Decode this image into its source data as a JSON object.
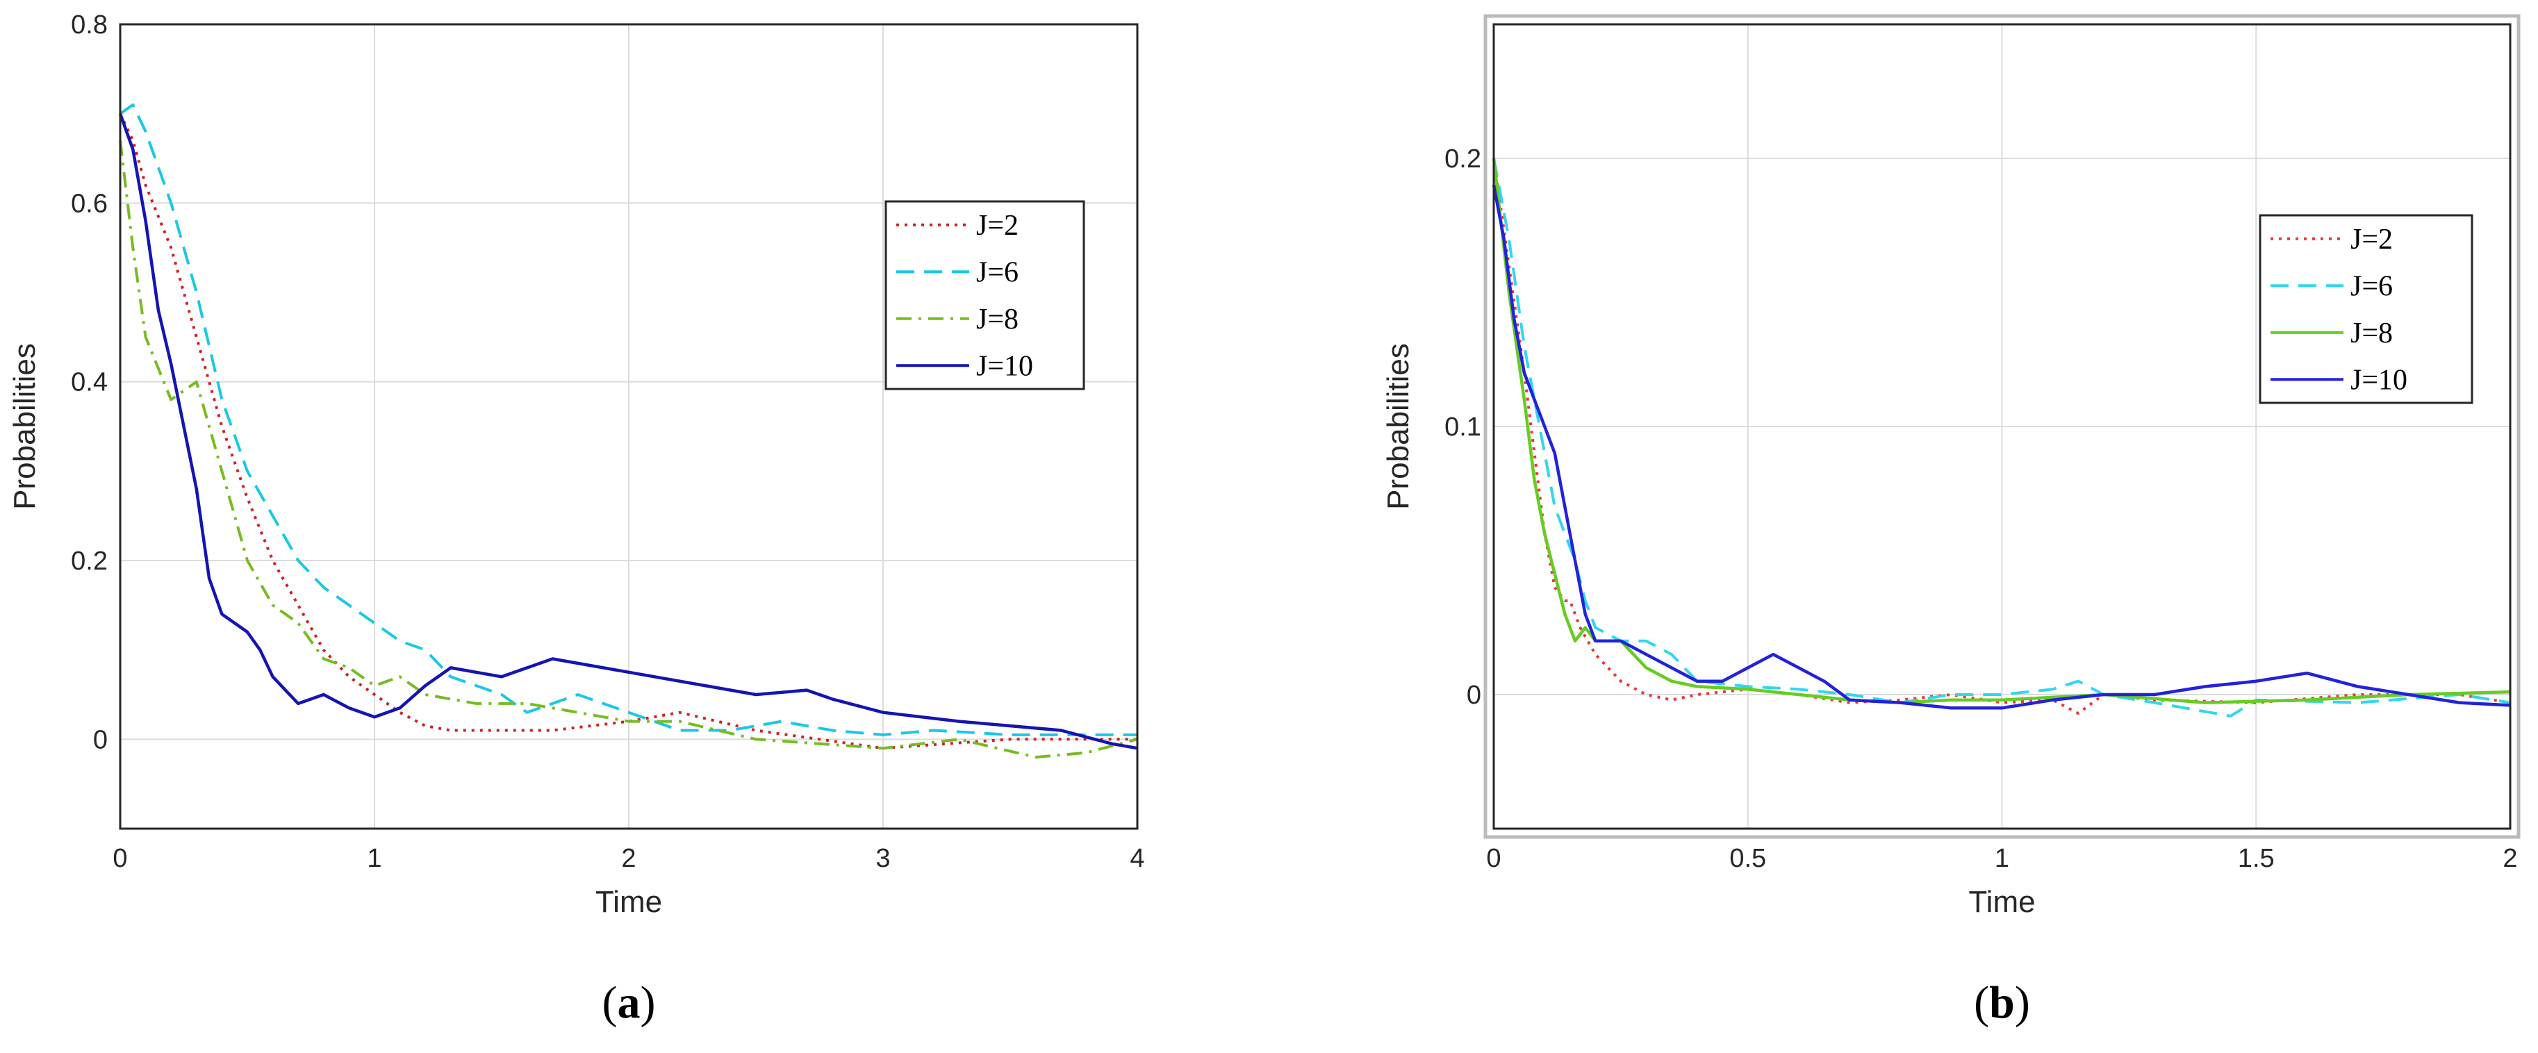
{
  "chart_data": [
    {
      "type": "line",
      "panel": "a",
      "caption_open": "(",
      "caption_letter": "a",
      "caption_close": ")",
      "xlabel": "Time",
      "ylabel": "Probabilities",
      "xlim": [
        0,
        4
      ],
      "ylim": [
        -0.1,
        0.8
      ],
      "xticks": [
        0,
        1,
        2,
        3,
        4
      ],
      "xtick_labels": [
        "0",
        "1",
        "2",
        "3",
        "4"
      ],
      "yticks": [
        0,
        0.2,
        0.4,
        0.6,
        0.8
      ],
      "ytick_labels": [
        "0",
        "0.2",
        "0.4",
        "0.6",
        "0.8"
      ],
      "grid": true,
      "legend_position": "upper-right",
      "series": [
        {
          "name": "J=2",
          "color": "#cc2222",
          "dash": "dotted",
          "x": [
            0,
            0.05,
            0.1,
            0.2,
            0.3,
            0.4,
            0.5,
            0.6,
            0.7,
            0.8,
            0.9,
            1.0,
            1.1,
            1.2,
            1.3,
            1.5,
            1.7,
            2.0,
            2.2,
            2.5,
            3.0,
            3.5,
            4.0
          ],
          "y": [
            0.7,
            0.67,
            0.62,
            0.55,
            0.45,
            0.35,
            0.27,
            0.2,
            0.15,
            0.1,
            0.07,
            0.05,
            0.03,
            0.015,
            0.01,
            0.01,
            0.01,
            0.02,
            0.03,
            0.01,
            -0.01,
            0.0,
            0.0
          ]
        },
        {
          "name": "J=6",
          "color": "#19c8e6",
          "dash": "dashed",
          "x": [
            0,
            0.05,
            0.1,
            0.2,
            0.3,
            0.4,
            0.5,
            0.6,
            0.7,
            0.8,
            0.9,
            1.0,
            1.1,
            1.2,
            1.3,
            1.4,
            1.5,
            1.6,
            1.7,
            1.8,
            2.0,
            2.2,
            2.4,
            2.6,
            2.8,
            3.0,
            3.2,
            3.5,
            4.0
          ],
          "y": [
            0.7,
            0.71,
            0.68,
            0.6,
            0.5,
            0.38,
            0.3,
            0.25,
            0.2,
            0.17,
            0.15,
            0.13,
            0.11,
            0.1,
            0.07,
            0.06,
            0.05,
            0.03,
            0.04,
            0.05,
            0.03,
            0.01,
            0.01,
            0.02,
            0.01,
            0.005,
            0.01,
            0.005,
            0.005
          ]
        },
        {
          "name": "J=8",
          "color": "#77bb22",
          "dash": "dashdot",
          "x": [
            0,
            0.05,
            0.1,
            0.2,
            0.3,
            0.4,
            0.5,
            0.6,
            0.7,
            0.8,
            0.9,
            1.0,
            1.1,
            1.2,
            1.4,
            1.6,
            1.8,
            2.0,
            2.2,
            2.5,
            3.0,
            3.3,
            3.6,
            3.8,
            4.0
          ],
          "y": [
            0.67,
            0.55,
            0.45,
            0.38,
            0.4,
            0.3,
            0.2,
            0.15,
            0.13,
            0.09,
            0.08,
            0.06,
            0.07,
            0.05,
            0.04,
            0.04,
            0.03,
            0.02,
            0.02,
            0.0,
            -0.01,
            0.0,
            -0.02,
            -0.015,
            0.0
          ]
        },
        {
          "name": "J=10",
          "color": "#1414b4",
          "dash": "solid",
          "x": [
            0,
            0.05,
            0.1,
            0.15,
            0.2,
            0.3,
            0.35,
            0.4,
            0.5,
            0.55,
            0.6,
            0.7,
            0.8,
            0.9,
            1.0,
            1.1,
            1.2,
            1.3,
            1.5,
            1.6,
            1.7,
            2.0,
            2.3,
            2.5,
            2.7,
            2.8,
            3.0,
            3.3,
            3.7,
            3.9,
            4.0
          ],
          "y": [
            0.7,
            0.66,
            0.58,
            0.48,
            0.42,
            0.28,
            0.18,
            0.14,
            0.12,
            0.1,
            0.07,
            0.04,
            0.05,
            0.035,
            0.025,
            0.035,
            0.06,
            0.08,
            0.07,
            0.08,
            0.09,
            0.075,
            0.06,
            0.05,
            0.055,
            0.045,
            0.03,
            0.02,
            0.01,
            -0.005,
            -0.01
          ]
        }
      ]
    },
    {
      "type": "line",
      "panel": "b",
      "caption_open": "(",
      "caption_letter": "b",
      "caption_close": ")",
      "xlabel": "Time",
      "ylabel": "Probabilities",
      "xlim": [
        0,
        2
      ],
      "ylim": [
        -0.05,
        0.25
      ],
      "xticks": [
        0,
        0.5,
        1,
        1.5,
        2
      ],
      "xtick_labels": [
        "0",
        "0.5",
        "1",
        "1.5",
        "2"
      ],
      "yticks": [
        0,
        0.1,
        0.2
      ],
      "ytick_labels": [
        "0",
        "0.1",
        "0.2"
      ],
      "grid": true,
      "legend_position": "upper-right",
      "series": [
        {
          "name": "J=2",
          "color": "#ee3333",
          "dash": "dotted",
          "x": [
            0,
            0.03,
            0.06,
            0.08,
            0.1,
            0.12,
            0.14,
            0.15,
            0.17,
            0.2,
            0.25,
            0.3,
            0.35,
            0.4,
            0.5,
            0.6,
            0.7,
            0.8,
            0.9,
            1.0,
            1.1,
            1.15,
            1.2,
            1.3,
            1.5,
            1.7,
            1.9,
            2.0
          ],
          "y": [
            0.2,
            0.16,
            0.12,
            0.09,
            0.06,
            0.04,
            0.035,
            0.035,
            0.025,
            0.015,
            0.005,
            0.0,
            -0.002,
            0.0,
            0.002,
            0.0,
            -0.003,
            -0.002,
            0.0,
            -0.003,
            -0.002,
            -0.007,
            0.0,
            -0.002,
            -0.003,
            0.0,
            0.0,
            -0.003
          ]
        },
        {
          "name": "J=6",
          "color": "#33d6ee",
          "dash": "dashed",
          "x": [
            0,
            0.03,
            0.06,
            0.08,
            0.1,
            0.12,
            0.14,
            0.16,
            0.18,
            0.2,
            0.25,
            0.3,
            0.35,
            0.4,
            0.5,
            0.6,
            0.7,
            0.8,
            0.9,
            1.0,
            1.1,
            1.15,
            1.2,
            1.3,
            1.45,
            1.5,
            1.7,
            1.9,
            2.0
          ],
          "y": [
            0.2,
            0.17,
            0.13,
            0.11,
            0.09,
            0.07,
            0.06,
            0.05,
            0.035,
            0.025,
            0.02,
            0.02,
            0.015,
            0.005,
            0.003,
            0.002,
            0.0,
            -0.003,
            0.0,
            0.0,
            0.002,
            0.005,
            0.0,
            -0.003,
            -0.008,
            -0.002,
            -0.003,
            0.0,
            -0.003
          ]
        },
        {
          "name": "J=8",
          "color": "#66cc22",
          "dash": "solid",
          "x": [
            0,
            0.03,
            0.06,
            0.08,
            0.1,
            0.12,
            0.14,
            0.16,
            0.18,
            0.2,
            0.25,
            0.3,
            0.35,
            0.4,
            0.5,
            0.6,
            0.7,
            0.8,
            0.9,
            1.0,
            1.2,
            1.4,
            1.6,
            1.8,
            2.0
          ],
          "y": [
            0.2,
            0.15,
            0.11,
            0.08,
            0.06,
            0.045,
            0.03,
            0.02,
            0.025,
            0.02,
            0.02,
            0.01,
            0.005,
            0.003,
            0.002,
            0.0,
            -0.002,
            -0.003,
            -0.002,
            -0.002,
            0.0,
            -0.003,
            -0.002,
            0.0,
            0.001
          ]
        },
        {
          "name": "J=10",
          "color": "#2222dd",
          "dash": "solid",
          "x": [
            0,
            0.02,
            0.04,
            0.06,
            0.08,
            0.1,
            0.12,
            0.14,
            0.16,
            0.18,
            0.2,
            0.25,
            0.3,
            0.35,
            0.4,
            0.45,
            0.5,
            0.55,
            0.6,
            0.65,
            0.7,
            0.8,
            0.9,
            1.0,
            1.1,
            1.2,
            1.3,
            1.4,
            1.5,
            1.6,
            1.7,
            1.8,
            1.9,
            2.0
          ],
          "y": [
            0.19,
            0.17,
            0.14,
            0.12,
            0.11,
            0.1,
            0.09,
            0.07,
            0.05,
            0.03,
            0.02,
            0.02,
            0.015,
            0.01,
            0.005,
            0.005,
            0.01,
            0.015,
            0.01,
            0.005,
            -0.002,
            -0.003,
            -0.005,
            -0.005,
            -0.002,
            0.0,
            0.0,
            0.003,
            0.005,
            0.008,
            0.003,
            0.0,
            -0.003,
            -0.004
          ]
        }
      ]
    }
  ]
}
